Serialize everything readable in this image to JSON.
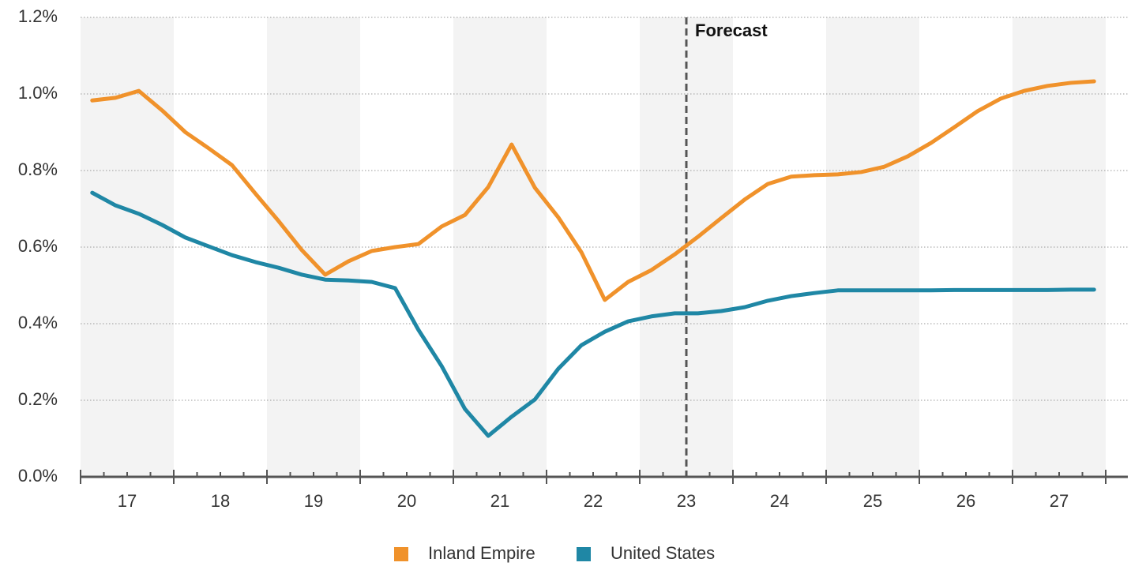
{
  "chart_data": {
    "type": "line",
    "x": [
      16.625,
      16.875,
      17.125,
      17.375,
      17.625,
      17.875,
      18.125,
      18.375,
      18.625,
      18.875,
      19.125,
      19.375,
      19.625,
      19.875,
      20.125,
      20.375,
      20.625,
      20.875,
      21.125,
      21.375,
      21.625,
      21.875,
      22.125,
      22.375,
      22.625,
      22.875,
      23.125,
      23.375,
      23.625,
      23.875,
      24.125,
      24.375,
      24.625,
      24.875,
      25.125,
      25.375,
      25.625,
      25.875,
      26.125,
      26.375,
      26.625,
      26.875,
      27.125,
      27.375
    ],
    "series": [
      {
        "name": "Inland Empire",
        "color": "#f0922b",
        "values": [
          0.983,
          0.99,
          1.008,
          0.957,
          0.9,
          0.858,
          0.814,
          0.74,
          0.668,
          0.592,
          0.528,
          0.563,
          0.59,
          0.6,
          0.608,
          0.654,
          0.684,
          0.757,
          0.868,
          0.755,
          0.678,
          0.586,
          0.462,
          0.509,
          0.54,
          0.581,
          0.627,
          0.676,
          0.724,
          0.765,
          0.784,
          0.788,
          0.79,
          0.796,
          0.81,
          0.837,
          0.872,
          0.913,
          0.955,
          0.988,
          1.008,
          1.021,
          1.029,
          1.033
        ]
      },
      {
        "name": "United States",
        "color": "#1f87a5",
        "values": [
          0.742,
          0.709,
          0.687,
          0.658,
          0.625,
          0.602,
          0.579,
          0.561,
          0.546,
          0.528,
          0.515,
          0.513,
          0.509,
          0.493,
          0.384,
          0.289,
          0.177,
          0.107,
          0.157,
          0.202,
          0.282,
          0.344,
          0.379,
          0.406,
          0.419,
          0.427,
          0.427,
          0.433,
          0.443,
          0.46,
          0.472,
          0.48,
          0.487,
          0.487,
          0.487,
          0.487,
          0.487,
          0.488,
          0.488,
          0.488,
          0.488,
          0.488,
          0.489,
          0.489
        ]
      }
    ],
    "xlim": [
      16.5,
      27.5
    ],
    "xticks": [
      17,
      18,
      19,
      20,
      21,
      22,
      23,
      24,
      25,
      26,
      27
    ],
    "ylim": [
      0,
      1.2
    ],
    "yticks": [
      {
        "value": 0,
        "label": "0.0%"
      },
      {
        "value": 0.2,
        "label": "0.2%"
      },
      {
        "value": 0.4,
        "label": "0.4%"
      },
      {
        "value": 0.6,
        "label": "0.6%"
      },
      {
        "value": 0.8,
        "label": "0.8%"
      },
      {
        "value": 1.0,
        "label": "1.0%"
      },
      {
        "value": 1.2,
        "label": "1.2%"
      }
    ],
    "grid": true,
    "forecast": {
      "x": 23,
      "label": "Forecast"
    },
    "legend": "bottom"
  }
}
